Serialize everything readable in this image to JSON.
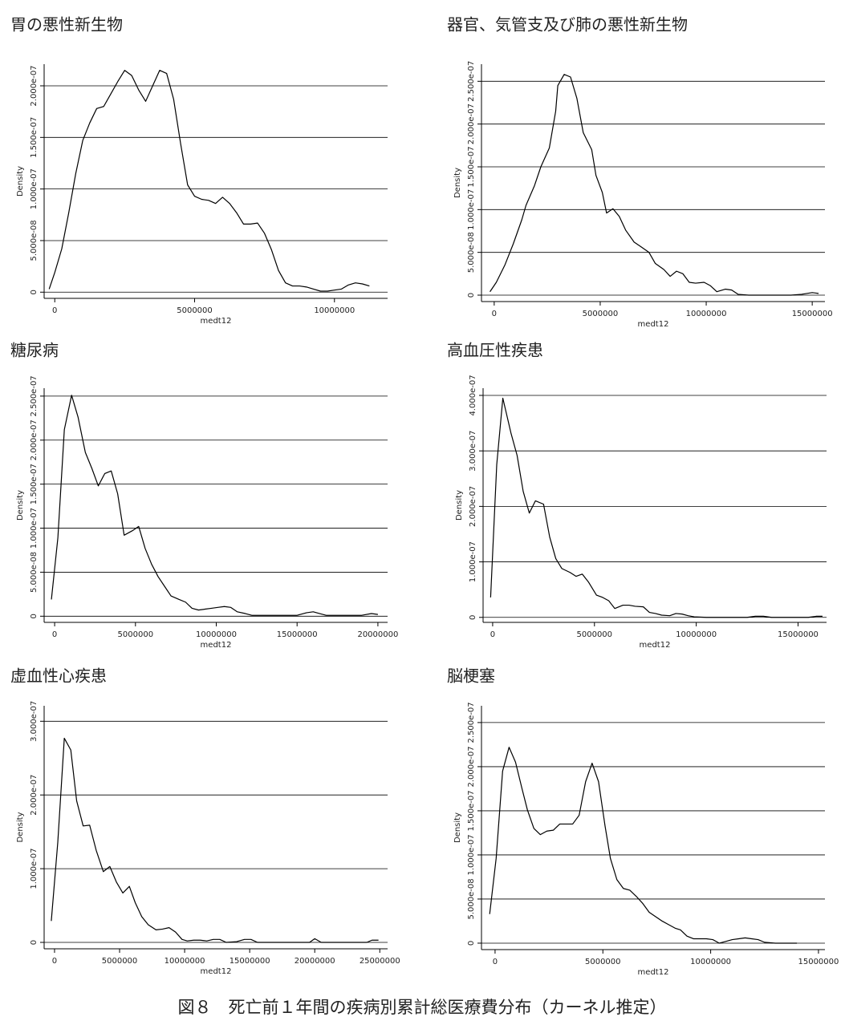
{
  "caption": "図８　死亡前１年間の疾病別累計総医療費分布（カーネル推定）",
  "chart_data": [
    {
      "type": "line",
      "title": "胃の悪性新生物",
      "xlabel": "medt12",
      "ylabel": "Density",
      "color": "#000000",
      "grid": true,
      "xlim": [
        -380000,
        11900000
      ],
      "ylim": [
        -6e-09,
        2.21e-07
      ],
      "xticks": [
        0,
        5000000,
        10000000
      ],
      "yticks": [
        0,
        {
          "value": 5e-08,
          "label": "5.000e-08"
        },
        {
          "value": 1e-07,
          "label": "1.000e-07"
        },
        {
          "value": 1.5e-07,
          "label": "1.500e-07"
        },
        {
          "value": 2e-07,
          "label": "2.000e-07"
        }
      ],
      "x": [
        -200000,
        0,
        250000,
        500000,
        750000,
        1000000,
        1250000,
        1500000,
        1750000,
        2000000,
        2250000,
        2500000,
        2750000,
        3000000,
        3250000,
        3500000,
        3750000,
        4000000,
        4250000,
        4500000,
        4750000,
        5000000,
        5250000,
        5500000,
        5750000,
        6000000,
        6250000,
        6500000,
        6750000,
        7000000,
        7250000,
        7500000,
        7750000,
        8000000,
        8250000,
        8500000,
        8750000,
        9000000,
        9250000,
        9500000,
        9750000,
        10000000,
        10250000,
        10500000,
        10750000,
        11000000,
        11250000
      ],
      "values": [
        3e-09,
        1.9e-08,
        4.2e-08,
        7.7e-08,
        1.15e-07,
        1.47e-07,
        1.64e-07,
        1.78e-07,
        1.8e-07,
        1.92e-07,
        2.04e-07,
        2.15e-07,
        2.1e-07,
        1.96e-07,
        1.85e-07,
        2e-07,
        2.15e-07,
        2.12e-07,
        1.87e-07,
        1.44e-07,
        1.04e-07,
        9.3e-08,
        9e-08,
        8.9e-08,
        8.6e-08,
        9.2e-08,
        8.6e-08,
        7.7e-08,
        6.6e-08,
        6.6e-08,
        6.7e-08,
        5.7e-08,
        4.1e-08,
        2.1e-08,
        9e-09,
        6e-09,
        6e-09,
        5e-09,
        3e-09,
        1e-09,
        1e-09,
        2e-09,
        3e-09,
        7e-09,
        9e-09,
        8e-09,
        6e-09
      ]
    },
    {
      "type": "line",
      "title": "器官、気管支及び肺の悪性新生物",
      "xlabel": "medt12",
      "ylabel": "Density",
      "color": "#000000",
      "grid": true,
      "xlim": [
        -600000,
        15600000
      ],
      "ylim": [
        -7.5e-09,
        2.7e-07
      ],
      "xticks": [
        0,
        5000000,
        10000000,
        15000000
      ],
      "yticks": [
        0,
        {
          "value": 5e-08,
          "label": "5.000e-08"
        },
        {
          "value": 1e-07,
          "label": "1.000e-07"
        },
        {
          "value": 1.5e-07,
          "label": "1.500e-07"
        },
        {
          "value": 2e-07,
          "label": "2.000e-07"
        },
        {
          "value": 2.5e-07,
          "label": "2.500e-07"
        }
      ],
      "x": [
        -200000,
        100000,
        500000,
        900000,
        1300000,
        1500000,
        1900000,
        2200000,
        2600000,
        2900000,
        3000000,
        3300000,
        3600000,
        3900000,
        4200000,
        4600000,
        4800000,
        5100000,
        5300000,
        5600000,
        5900000,
        6200000,
        6600000,
        6900000,
        7300000,
        7600000,
        8000000,
        8300000,
        8600000,
        8900000,
        9200000,
        9500000,
        9900000,
        10200000,
        10500000,
        10900000,
        11200000,
        11500000,
        12000000,
        13000000,
        14000000,
        14500000,
        15000000,
        15300000
      ],
      "values": [
        4e-09,
        1.5e-08,
        3.5e-08,
        6e-08,
        8.8e-08,
        1.05e-07,
        1.28e-07,
        1.5e-07,
        1.72e-07,
        2.15e-07,
        2.45e-07,
        2.58e-07,
        2.55e-07,
        2.3e-07,
        1.9e-07,
        1.7e-07,
        1.4e-07,
        1.2e-07,
        9.6e-08,
        1.01e-07,
        9.2e-08,
        7.6e-08,
        6.2e-08,
        5.7e-08,
        5e-08,
        3.7e-08,
        3e-08,
        2.2e-08,
        2.8e-08,
        2.5e-08,
        1.5e-08,
        1.4e-08,
        1.5e-08,
        1.1e-08,
        4e-09,
        7e-09,
        6e-09,
        1e-09,
        0,
        0,
        0,
        1e-09,
        3e-09,
        2e-09
      ]
    },
    {
      "type": "line",
      "title": "糖尿病",
      "xlabel": "medt12",
      "ylabel": "Density",
      "color": "#000000",
      "grid": true,
      "xlim": [
        -650000,
        20600000
      ],
      "ylim": [
        -7e-09,
        2.59e-07
      ],
      "xticks": [
        0,
        5000000,
        10000000,
        15000000,
        20000000
      ],
      "yticks": [
        0,
        {
          "value": 5e-08,
          "label": "5.000e-08"
        },
        {
          "value": 1e-07,
          "label": "1.000e-07"
        },
        {
          "value": 1.5e-07,
          "label": "1.500e-07"
        },
        {
          "value": 2e-07,
          "label": "2.000e-07"
        },
        {
          "value": 2.5e-07,
          "label": "2.500e-07"
        }
      ],
      "x": [
        -200000,
        200000,
        600000,
        1050000,
        1450000,
        1900000,
        2300000,
        2700000,
        3100000,
        3500000,
        3900000,
        4300000,
        4800000,
        5200000,
        5600000,
        6000000,
        6400000,
        6800000,
        7200000,
        7700000,
        8100000,
        8500000,
        8900000,
        9300000,
        9700000,
        10100000,
        10500000,
        10900000,
        11300000,
        11800000,
        12200000,
        15000000,
        15600000,
        16000000,
        16400000,
        16800000,
        17500000,
        19000000,
        19600000,
        20000000
      ],
      "values": [
        1.9e-08,
        8.9e-08,
        2.12e-07,
        2.51e-07,
        2.26e-07,
        1.86e-07,
        1.68e-07,
        1.48e-07,
        1.62e-07,
        1.65e-07,
        1.39e-07,
        9.2e-08,
        9.7e-08,
        1.02e-07,
        7.7e-08,
        5.9e-08,
        4.5e-08,
        3.4e-08,
        2.3e-08,
        1.9e-08,
        1.6e-08,
        9e-09,
        7e-09,
        8e-09,
        9e-09,
        1e-08,
        1.1e-08,
        1e-08,
        5e-09,
        3e-09,
        1e-09,
        1e-09,
        4e-09,
        5e-09,
        3e-09,
        1e-09,
        1e-09,
        1e-09,
        3e-09,
        2e-09
      ]
    },
    {
      "type": "line",
      "title": "高血圧性疾患",
      "xlabel": "medt12",
      "ylabel": "Density",
      "color": "#000000",
      "grid": true,
      "xlim": [
        -470000,
        16400000
      ],
      "ylim": [
        -9e-09,
        4.13e-07
      ],
      "xticks": [
        0,
        5000000,
        10000000,
        15000000
      ],
      "yticks": [
        0,
        {
          "value": 1e-07,
          "label": "1.000e-07"
        },
        {
          "value": 2e-07,
          "label": "2.000e-07"
        },
        {
          "value": 3e-07,
          "label": "3.000e-07"
        },
        {
          "value": 4e-07,
          "label": "4.000e-07"
        }
      ],
      "x": [
        -100000,
        200000,
        500000,
        900000,
        1200000,
        1500000,
        1800000,
        2100000,
        2500000,
        2800000,
        3100000,
        3400000,
        3800000,
        4100000,
        4400000,
        4700000,
        5100000,
        5400000,
        5700000,
        6000000,
        6400000,
        6700000,
        7000000,
        7400000,
        7700000,
        8000000,
        8300000,
        8700000,
        9000000,
        9300000,
        9600000,
        9900000,
        10500000,
        12500000,
        12900000,
        13300000,
        13700000,
        15500000,
        15900000,
        16200000
      ],
      "values": [
        3.6e-08,
        2.75e-07,
        3.95e-07,
        3.32e-07,
        2.92e-07,
        2.27e-07,
        1.88e-07,
        2.1e-07,
        2.04e-07,
        1.45e-07,
        1.06e-07,
        8.8e-08,
        8.1e-08,
        7.4e-08,
        7.8e-08,
        6.4e-08,
        4e-08,
        3.6e-08,
        3e-08,
        1.6e-08,
        2.2e-08,
        2.2e-08,
        2e-08,
        1.9e-08,
        9e-09,
        7e-09,
        4e-09,
        3e-09,
        7e-09,
        6e-09,
        3e-09,
        1e-09,
        0,
        0,
        2e-09,
        2e-09,
        0,
        0,
        2e-09,
        2e-09
      ]
    },
    {
      "type": "line",
      "title": "虚血性心疾患",
      "xlabel": "medt12",
      "ylabel": "Density",
      "color": "#000000",
      "grid": true,
      "xlim": [
        -800000,
        25600000
      ],
      "ylim": [
        -8.7e-09,
        3.21e-07
      ],
      "xticks": [
        0,
        5000000,
        10000000,
        15000000,
        20000000,
        25000000
      ],
      "yticks": [
        0,
        {
          "value": 1e-07,
          "label": "1.000e-07"
        },
        {
          "value": 2e-07,
          "label": "2.000e-07"
        },
        {
          "value": 3e-07,
          "label": "3.000e-07"
        }
      ],
      "x": [
        -250000,
        250000,
        750000,
        1250000,
        1700000,
        2200000,
        2700000,
        3200000,
        3750000,
        4250000,
        4750000,
        5250000,
        5750000,
        6200000,
        6700000,
        7200000,
        7800000,
        8300000,
        8800000,
        9300000,
        9800000,
        10200000,
        10700000,
        11200000,
        11700000,
        12200000,
        12700000,
        13200000,
        14000000,
        14600000,
        15100000,
        15600000,
        19600000,
        20000000,
        20500000,
        24000000,
        24400000,
        24900000
      ],
      "values": [
        2.9e-08,
        1.36e-07,
        2.77e-07,
        2.61e-07,
        1.92e-07,
        1.58e-07,
        1.59e-07,
        1.25e-07,
        9.6e-08,
        1.03e-07,
        8.2e-08,
        6.7e-08,
        7.6e-08,
        5.4e-08,
        3.5e-08,
        2.4e-08,
        1.7e-08,
        1.8e-08,
        2e-08,
        1.4e-08,
        4e-09,
        2e-09,
        3e-09,
        3e-09,
        2e-09,
        4e-09,
        4e-09,
        0,
        1e-09,
        4e-09,
        4e-09,
        0,
        0,
        5e-09,
        0,
        0,
        3e-09,
        3e-09
      ]
    },
    {
      "type": "line",
      "title": "脳梗塞",
      "xlabel": "medt12",
      "ylabel": "Density",
      "color": "#000000",
      "grid": true,
      "xlim": [
        -630000,
        15300000
      ],
      "ylim": [
        -7.3e-09,
        2.69e-07
      ],
      "xticks": [
        0,
        5000000,
        10000000,
        15000000
      ],
      "yticks": [
        0,
        {
          "value": 5e-08,
          "label": "5.000e-08"
        },
        {
          "value": 1e-07,
          "label": "1.000e-07"
        },
        {
          "value": 1.5e-07,
          "label": "1.500e-07"
        },
        {
          "value": 2e-07,
          "label": "2.000e-07"
        },
        {
          "value": 2.5e-07,
          "label": "2.500e-07"
        }
      ],
      "x": [
        -250000,
        50000,
        350000,
        650000,
        950000,
        1250000,
        1500000,
        1800000,
        2100000,
        2400000,
        2700000,
        3000000,
        3300000,
        3600000,
        3900000,
        4200000,
        4500000,
        4800000,
        5100000,
        5350000,
        5650000,
        5950000,
        6250000,
        6550000,
        6850000,
        7150000,
        7450000,
        7750000,
        8050000,
        8350000,
        8600000,
        8900000,
        9200000,
        9500000,
        9800000,
        10100000,
        10400000,
        10700000,
        11000000,
        11300000,
        11600000,
        11900000,
        12200000,
        12500000,
        13000000,
        14000000
      ],
      "values": [
        3.3e-08,
        9.6e-08,
        1.95e-07,
        2.22e-07,
        2.05e-07,
        1.75e-07,
        1.51e-07,
        1.3e-07,
        1.23e-07,
        1.27e-07,
        1.28e-07,
        1.35e-07,
        1.35e-07,
        1.35e-07,
        1.45e-07,
        1.83e-07,
        2.04e-07,
        1.83e-07,
        1.33e-07,
        9.6e-08,
        7.2e-08,
        6.2e-08,
        6e-08,
        5.3e-08,
        4.5e-08,
        3.5e-08,
        3e-08,
        2.5e-08,
        2.1e-08,
        1.7e-08,
        1.5e-08,
        8e-09,
        5e-09,
        5e-09,
        5e-09,
        4e-09,
        0,
        2e-09,
        4e-09,
        5e-09,
        6e-09,
        5e-09,
        4e-09,
        1e-09,
        0,
        0
      ]
    }
  ]
}
